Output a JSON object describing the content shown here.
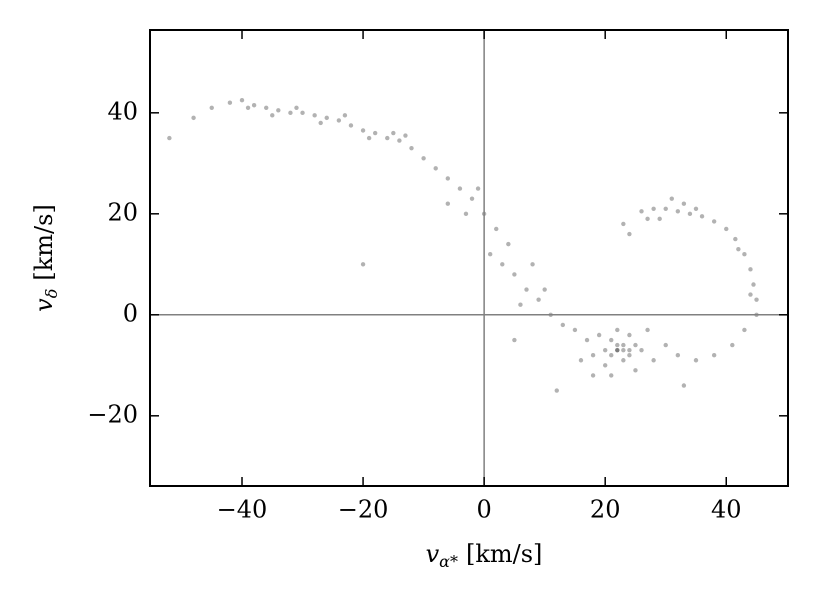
{
  "chart_data": {
    "type": "scatter",
    "xlabel": {
      "symbol": "v",
      "subscript": "α*",
      "unit": "[km/s]"
    },
    "ylabel": {
      "symbol": "v",
      "subscript": "δ",
      "unit": "[km/s]"
    },
    "x": [
      -52,
      -48,
      -45,
      -42,
      -40,
      -38,
      -36,
      -34,
      -32,
      -30,
      -28,
      -26,
      -24,
      -22,
      -20,
      -18,
      -16,
      -14,
      -12,
      -39,
      -35,
      -31,
      -27,
      -23,
      -19,
      -15,
      -13,
      -10,
      -8,
      -6,
      -4,
      -2,
      0,
      2,
      -3,
      1,
      3,
      5,
      7,
      6,
      9,
      11,
      13,
      15,
      8,
      4,
      -1,
      -6,
      10,
      17,
      18,
      19,
      20,
      20,
      21,
      21,
      22,
      22,
      23,
      23,
      24,
      24,
      25,
      25,
      26,
      27,
      28,
      18,
      16,
      30,
      22,
      23,
      24,
      21,
      22,
      32,
      35,
      38,
      41,
      43,
      45,
      45,
      44.5,
      44,
      43,
      41.5,
      40,
      38,
      36,
      34,
      32,
      30,
      28,
      26,
      29,
      33,
      31,
      27,
      35,
      42,
      44,
      23,
      24,
      12,
      33,
      -20,
      5
    ],
    "values": [
      35,
      39,
      41,
      42,
      42.5,
      41.5,
      41,
      40.5,
      40,
      40,
      39.5,
      39,
      38.5,
      37.5,
      36.5,
      36,
      35,
      34.5,
      33,
      41,
      39.5,
      41,
      38,
      39.5,
      35,
      36,
      35.5,
      31,
      29,
      27,
      25,
      23,
      20,
      17,
      20,
      12,
      10,
      8,
      5,
      2,
      3,
      0,
      -2,
      -3,
      10,
      14,
      25,
      22,
      5,
      -5,
      -8,
      -4,
      -7,
      -10,
      -5,
      -12,
      -7,
      -3,
      -9,
      -6,
      -4,
      -8,
      -11,
      -6,
      -7,
      -3,
      -9,
      -12,
      -9,
      -6,
      -7,
      -7,
      -7,
      -8,
      -6,
      -8,
      -9,
      -8,
      -6,
      -3,
      0,
      3,
      6,
      9,
      12,
      15,
      17,
      18.5,
      19.5,
      20,
      20.5,
      21,
      21,
      20.5,
      19,
      22,
      23,
      19,
      21,
      13,
      4,
      18,
      16,
      -15,
      -14,
      10,
      -5
    ],
    "color": "#000000",
    "alpha": 0.3,
    "xlim": [
      -55.2,
      50.2
    ],
    "ylim": [
      -33.9,
      56.4
    ],
    "xticks": [
      {
        "value": -40,
        "label": "−40"
      },
      {
        "value": -20,
        "label": "−20"
      },
      0,
      20,
      40
    ],
    "yticks": [
      {
        "value": -20,
        "label": "−20"
      },
      0,
      20,
      40
    ],
    "hlines": [
      0
    ],
    "vlines": [
      0
    ],
    "ref_color": "#808080"
  }
}
